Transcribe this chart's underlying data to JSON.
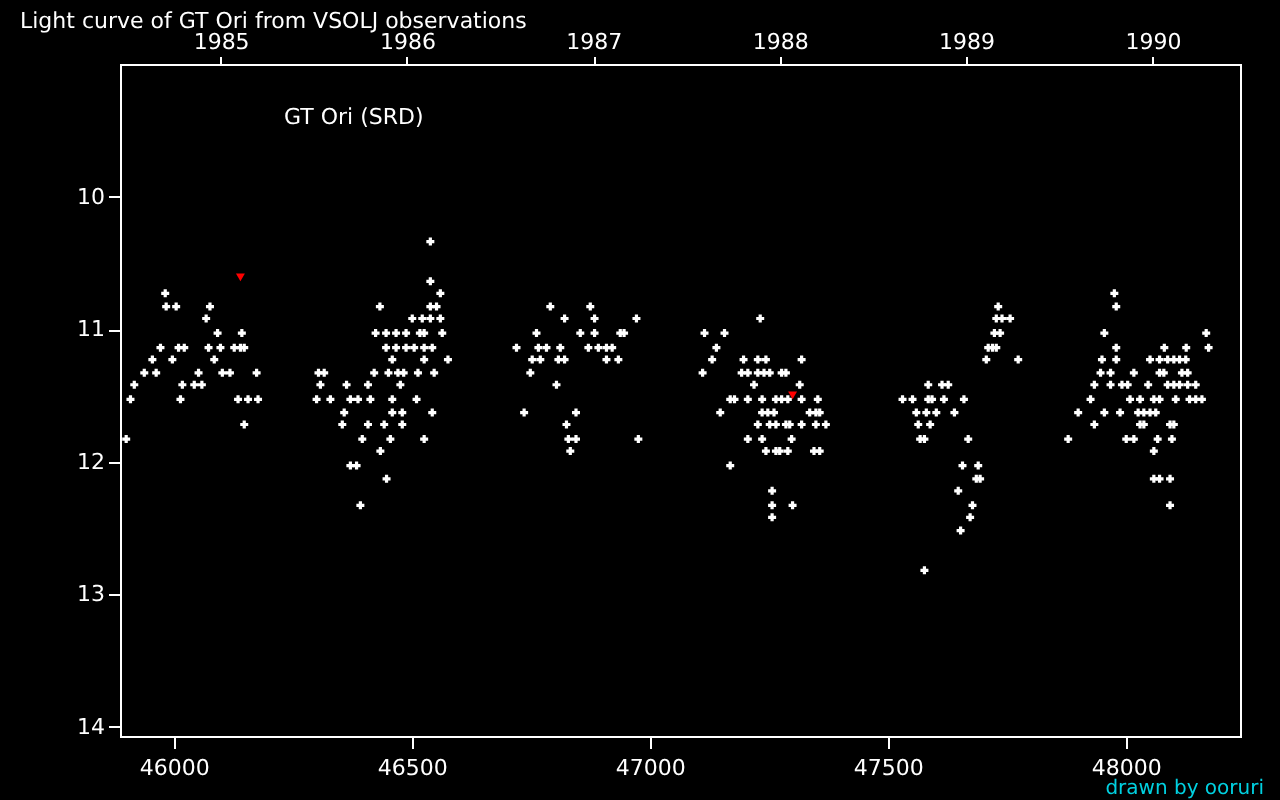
{
  "chart_data": {
    "type": "scatter",
    "title": "Light curve of GT Ori from VSOLJ observations",
    "annotations": [
      "GT Ori (SRD)",
      "drawn by ooruri"
    ],
    "xlim": [
      45887,
      48240
    ],
    "xticks": [
      46000,
      46500,
      47000,
      47500,
      48000
    ],
    "x2lim": [
      1984.46,
      1990.47
    ],
    "x2ticks": [
      1985,
      1986,
      1987,
      1988,
      1989,
      1990
    ],
    "ylim": [
      14.07,
      9.0
    ],
    "yticks": [
      10,
      11,
      12,
      13,
      14
    ],
    "marker": "cross",
    "grid": false,
    "legend": false,
    "series": [
      {
        "color": "#ffffff",
        "x": [
          45982,
          45984,
          46005,
          46076,
          46068,
          46092,
          46143,
          45972,
          46010,
          46022,
          46073,
          46098,
          46127,
          46140,
          46148,
          45955,
          45997,
          46085,
          45938,
          45963,
          46052,
          46102,
          46118,
          46174,
          45917,
          46018,
          46043,
          46059,
          45909,
          46014,
          46135,
          46156,
          46177,
          46148,
          45900,
          46539,
          46539,
          46560,
          46433,
          46539,
          46552,
          46501,
          46522,
          46539,
          46560,
          46424,
          46446,
          46467,
          46488,
          46517,
          46526,
          46564,
          46446,
          46467,
          46488,
          46505,
          46526,
          46543,
          46459,
          46526,
          46576,
          46304,
          46316,
          46421,
          46451,
          46471,
          46483,
          46513,
          46547,
          46308,
          46363,
          46408,
          46476,
          46300,
          46329,
          46371,
          46387,
          46413,
          46459,
          46510,
          46358,
          46459,
          46480,
          46543,
          46354,
          46408,
          46442,
          46480,
          46396,
          46455,
          46526,
          46434,
          46371,
          46384,
          46447,
          46392,
          46791,
          46875,
          46821,
          46884,
          46972,
          46762,
          46854,
          46884,
          46938,
          46946,
          46720,
          46766,
          46783,
          46812,
          46871,
          46892,
          46909,
          46921,
          46753,
          46770,
          46808,
          46821,
          46909,
          46934,
          46749,
          46804,
          46736,
          46845,
          46825,
          46829,
          46845,
          46976,
          46833,
          47232,
          47115,
          47157,
          47140,
          47131,
          47197,
          47227,
          47244,
          47319,
          47111,
          47193,
          47206,
          47227,
          47240,
          47252,
          47277,
          47286,
          47219,
          47315,
          47169,
          47178,
          47206,
          47236,
          47265,
          47277,
          47290,
          47319,
          47353,
          47148,
          47236,
          47248,
          47261,
          47336,
          47349,
          47357,
          47227,
          47252,
          47265,
          47286,
          47294,
          47319,
          47349,
          47370,
          47206,
          47236,
          47298,
          47244,
          47265,
          47273,
          47290,
          47345,
          47357,
          47169,
          47257,
          47257,
          47300,
          47257,
          47732,
          47728,
          47740,
          47757,
          47724,
          47736,
          47711,
          47720,
          47728,
          47707,
          47774,
          47585,
          47614,
          47627,
          47531,
          47552,
          47585,
          47593,
          47618,
          47660,
          47560,
          47581,
          47602,
          47640,
          47564,
          47589,
          47568,
          47577,
          47669,
          47657,
          47690,
          47686,
          47694,
          47648,
          47678,
          47673,
          47653,
          47577,
          47976,
          47980,
          47955,
          48169,
          47980,
          48081,
          48127,
          48174,
          47950,
          47980,
          48051,
          48071,
          48088,
          48101,
          48113,
          48126,
          47947,
          47968,
          48017,
          48071,
          48080,
          48118,
          48130,
          47934,
          47968,
          47992,
          48004,
          48047,
          48088,
          48101,
          48113,
          48130,
          48147,
          47926,
          48009,
          48030,
          48059,
          48071,
          48105,
          48134,
          48147,
          48160,
          47900,
          47955,
          47988,
          48026,
          48038,
          48051,
          48063,
          47934,
          48030,
          48038,
          48093,
          48101,
          47879,
          48001,
          48017,
          48067,
          48097,
          48059,
          48059,
          48071,
          48093,
          48093
        ],
        "values": [
          10.73,
          10.83,
          10.83,
          10.83,
          10.92,
          11.03,
          11.03,
          11.14,
          11.14,
          11.14,
          11.14,
          11.14,
          11.14,
          11.14,
          11.14,
          11.23,
          11.23,
          11.23,
          11.33,
          11.33,
          11.33,
          11.33,
          11.33,
          11.33,
          11.42,
          11.42,
          11.42,
          11.42,
          11.53,
          11.53,
          11.53,
          11.53,
          11.53,
          11.72,
          11.83,
          10.34,
          10.64,
          10.73,
          10.83,
          10.83,
          10.83,
          10.92,
          10.92,
          10.92,
          10.92,
          11.03,
          11.03,
          11.03,
          11.03,
          11.03,
          11.03,
          11.03,
          11.14,
          11.14,
          11.14,
          11.14,
          11.14,
          11.14,
          11.23,
          11.23,
          11.23,
          11.33,
          11.33,
          11.33,
          11.33,
          11.33,
          11.33,
          11.33,
          11.33,
          11.42,
          11.42,
          11.42,
          11.42,
          11.53,
          11.53,
          11.53,
          11.53,
          11.53,
          11.53,
          11.53,
          11.63,
          11.63,
          11.63,
          11.63,
          11.72,
          11.72,
          11.72,
          11.72,
          11.83,
          11.83,
          11.83,
          11.92,
          12.03,
          12.03,
          12.13,
          12.33,
          10.83,
          10.83,
          10.92,
          10.92,
          10.92,
          11.03,
          11.03,
          11.03,
          11.03,
          11.03,
          11.14,
          11.14,
          11.14,
          11.14,
          11.14,
          11.14,
          11.14,
          11.14,
          11.23,
          11.23,
          11.23,
          11.23,
          11.23,
          11.23,
          11.33,
          11.42,
          11.63,
          11.63,
          11.72,
          11.83,
          11.83,
          11.83,
          11.92,
          10.92,
          11.03,
          11.03,
          11.14,
          11.23,
          11.23,
          11.23,
          11.23,
          11.23,
          11.33,
          11.33,
          11.33,
          11.33,
          11.33,
          11.33,
          11.33,
          11.33,
          11.42,
          11.42,
          11.53,
          11.53,
          11.53,
          11.53,
          11.53,
          11.53,
          11.53,
          11.53,
          11.53,
          11.63,
          11.63,
          11.63,
          11.63,
          11.63,
          11.63,
          11.63,
          11.72,
          11.72,
          11.72,
          11.72,
          11.72,
          11.72,
          11.72,
          11.72,
          11.83,
          11.83,
          11.83,
          11.92,
          11.92,
          11.92,
          11.92,
          11.92,
          11.92,
          12.03,
          12.22,
          12.33,
          12.33,
          12.42,
          10.83,
          10.92,
          10.92,
          10.92,
          11.03,
          11.03,
          11.14,
          11.14,
          11.14,
          11.23,
          11.23,
          11.42,
          11.42,
          11.42,
          11.53,
          11.53,
          11.53,
          11.53,
          11.53,
          11.53,
          11.63,
          11.63,
          11.63,
          11.63,
          11.72,
          11.72,
          11.83,
          11.83,
          11.83,
          12.03,
          12.03,
          12.13,
          12.13,
          12.22,
          12.33,
          12.42,
          12.52,
          12.82,
          10.73,
          10.83,
          11.03,
          11.03,
          11.14,
          11.14,
          11.14,
          11.14,
          11.23,
          11.23,
          11.23,
          11.23,
          11.23,
          11.23,
          11.23,
          11.23,
          11.33,
          11.33,
          11.33,
          11.33,
          11.33,
          11.33,
          11.33,
          11.42,
          11.42,
          11.42,
          11.42,
          11.42,
          11.42,
          11.42,
          11.42,
          11.42,
          11.42,
          11.53,
          11.53,
          11.53,
          11.53,
          11.53,
          11.53,
          11.53,
          11.53,
          11.53,
          11.63,
          11.63,
          11.63,
          11.63,
          11.63,
          11.63,
          11.63,
          11.72,
          11.72,
          11.72,
          11.72,
          11.72,
          11.83,
          11.83,
          11.83,
          11.83,
          11.83,
          11.92,
          12.13,
          12.13,
          12.13,
          12.33
        ]
      },
      {
        "color": "#ff0000",
        "marker": "triangle",
        "x": [
          46140,
          47300
        ],
        "values": [
          10.61,
          11.5
        ]
      }
    ]
  }
}
